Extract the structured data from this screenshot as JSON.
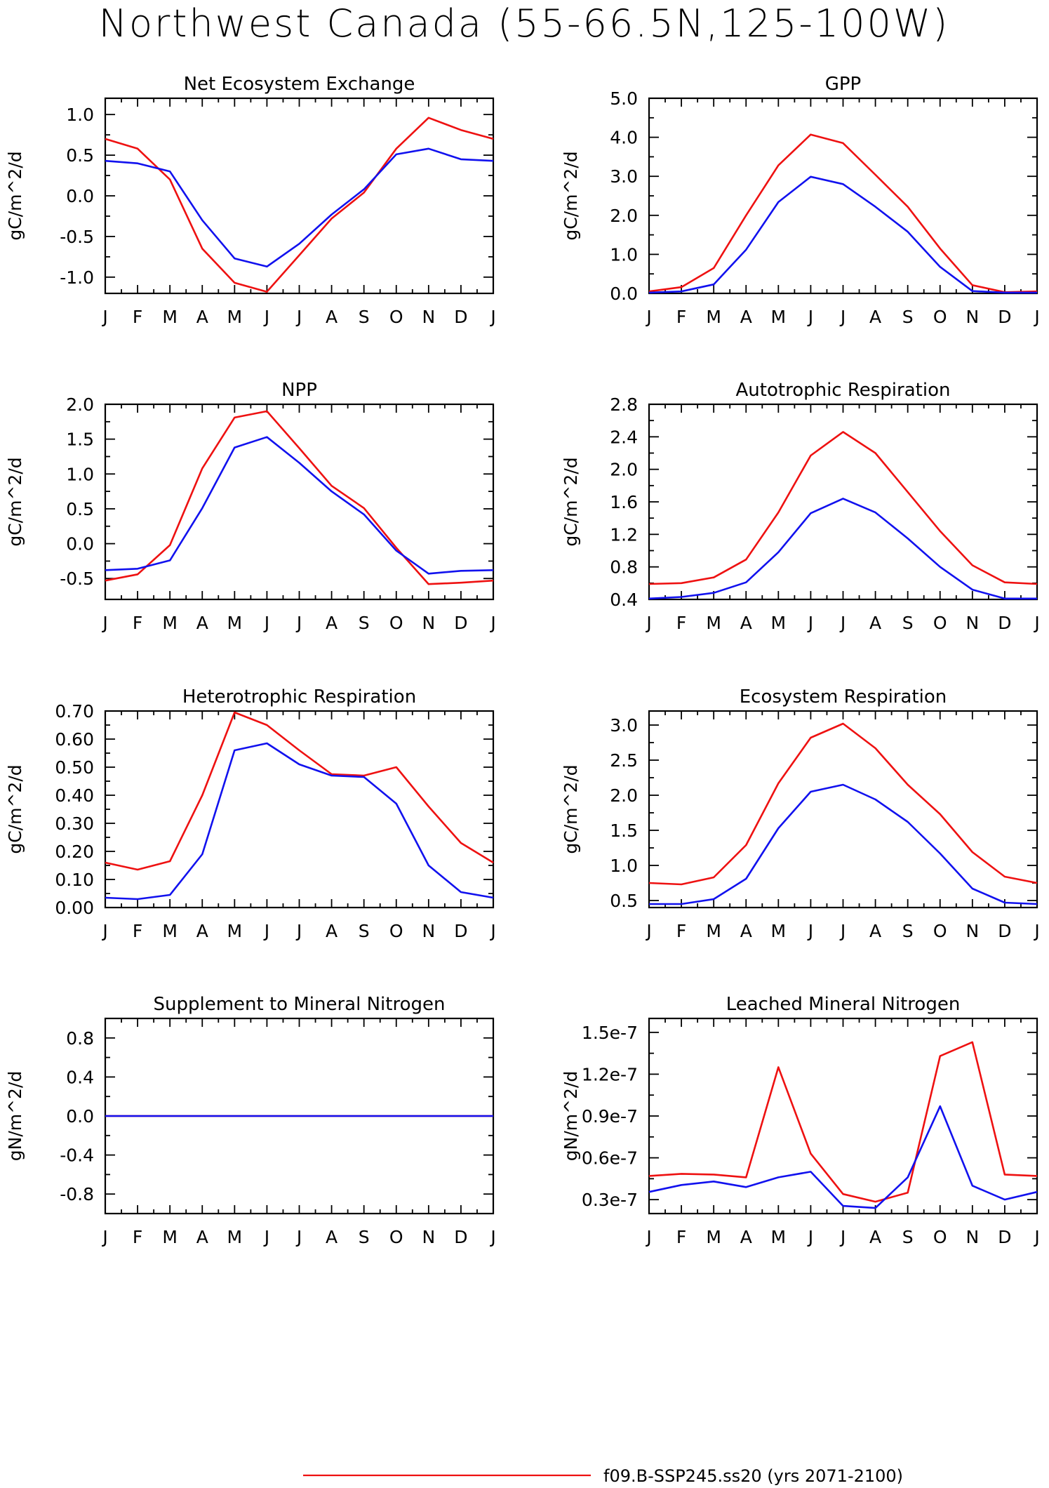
{
  "title": "Northwest Canada (55-66.5N,125-100W)",
  "month_labels": [
    "J",
    "F",
    "M",
    "A",
    "M",
    "J",
    "J",
    "A",
    "S",
    "O",
    "N",
    "D",
    "J"
  ],
  "colors": {
    "series_1": "#ee1111",
    "series_2": "#1111ee"
  },
  "legend": [
    {
      "label": "f09.B-SSP245.ss20 (yrs 2071-2100)",
      "color": "#ee1111"
    }
  ],
  "chart_data": [
    {
      "type": "line",
      "title": "Net Ecosystem Exchange",
      "ylabel": "gC/m^2/d",
      "ylim": [
        -1.2,
        1.2
      ],
      "yticks": [
        -1.0,
        -0.5,
        0.0,
        0.5,
        1.0
      ],
      "ytick_labels": [
        "-1.0",
        "-0.5",
        "0.0",
        "0.5",
        "1.0"
      ],
      "x": [
        "J",
        "F",
        "M",
        "A",
        "M",
        "J",
        "J",
        "A",
        "S",
        "O",
        "N",
        "D",
        "J"
      ],
      "series": [
        {
          "values": [
            0.7,
            0.58,
            0.2,
            -0.65,
            -1.07,
            -1.18,
            -0.73,
            -0.28,
            0.04,
            0.58,
            0.96,
            0.81,
            0.7
          ],
          "color": "#ee1111"
        },
        {
          "values": [
            0.43,
            0.4,
            0.3,
            -0.3,
            -0.77,
            -0.87,
            -0.59,
            -0.23,
            0.08,
            0.51,
            0.58,
            0.45,
            0.43
          ],
          "color": "#1111ee"
        }
      ]
    },
    {
      "type": "line",
      "title": "GPP",
      "ylabel": "gC/m^2/d",
      "ylim": [
        0.0,
        5.0
      ],
      "yticks": [
        0.0,
        1.0,
        2.0,
        3.0,
        4.0,
        5.0
      ],
      "ytick_labels": [
        "0.0",
        "1.0",
        "2.0",
        "3.0",
        "4.0",
        "5.0"
      ],
      "x": [
        "J",
        "F",
        "M",
        "A",
        "M",
        "J",
        "J",
        "A",
        "S",
        "O",
        "N",
        "D",
        "J"
      ],
      "series": [
        {
          "values": [
            0.05,
            0.16,
            0.65,
            2.0,
            3.28,
            4.07,
            3.85,
            3.04,
            2.22,
            1.15,
            0.21,
            0.03,
            0.05
          ],
          "color": "#ee1111"
        },
        {
          "values": [
            0.02,
            0.05,
            0.23,
            1.12,
            2.34,
            2.99,
            2.8,
            2.22,
            1.58,
            0.68,
            0.06,
            0.02,
            0.02
          ],
          "color": "#1111ee"
        }
      ]
    },
    {
      "type": "line",
      "title": "NPP",
      "ylabel": "gC/m^2/d",
      "ylim": [
        -0.8,
        2.0
      ],
      "yticks": [
        -0.5,
        0.0,
        0.5,
        1.0,
        1.5,
        2.0
      ],
      "ytick_labels": [
        "-0.5",
        "0.0",
        "0.5",
        "1.0",
        "1.5",
        "2.0"
      ],
      "x": [
        "J",
        "F",
        "M",
        "A",
        "M",
        "J",
        "J",
        "A",
        "S",
        "O",
        "N",
        "D",
        "J"
      ],
      "series": [
        {
          "values": [
            -0.53,
            -0.44,
            -0.02,
            1.08,
            1.81,
            1.9,
            1.37,
            0.83,
            0.51,
            -0.06,
            -0.58,
            -0.56,
            -0.53
          ],
          "color": "#ee1111"
        },
        {
          "values": [
            -0.38,
            -0.36,
            -0.24,
            0.51,
            1.38,
            1.53,
            1.16,
            0.75,
            0.42,
            -0.1,
            -0.43,
            -0.39,
            -0.38
          ],
          "color": "#1111ee"
        }
      ]
    },
    {
      "type": "line",
      "title": "Autotrophic Respiration",
      "ylabel": "gC/m^2/d",
      "ylim": [
        0.4,
        2.8
      ],
      "yticks": [
        0.4,
        0.8,
        1.2,
        1.6,
        2.0,
        2.4,
        2.8
      ],
      "ytick_labels": [
        "0.4",
        "0.8",
        "1.2",
        "1.6",
        "2.0",
        "2.4",
        "2.8"
      ],
      "x": [
        "J",
        "F",
        "M",
        "A",
        "M",
        "J",
        "J",
        "A",
        "S",
        "O",
        "N",
        "D",
        "J"
      ],
      "series": [
        {
          "values": [
            0.59,
            0.6,
            0.67,
            0.89,
            1.47,
            2.17,
            2.46,
            2.2,
            1.72,
            1.24,
            0.82,
            0.61,
            0.59
          ],
          "color": "#ee1111"
        },
        {
          "values": [
            0.41,
            0.43,
            0.48,
            0.61,
            0.98,
            1.46,
            1.64,
            1.47,
            1.15,
            0.8,
            0.52,
            0.41,
            0.41
          ],
          "color": "#1111ee"
        }
      ]
    },
    {
      "type": "line",
      "title": "Heterotrophic Respiration",
      "ylabel": "gC/m^2/d",
      "ylim": [
        0.0,
        0.7
      ],
      "yticks": [
        0.0,
        0.1,
        0.2,
        0.3,
        0.4,
        0.5,
        0.6,
        0.7
      ],
      "ytick_labels": [
        "0.00",
        "0.10",
        "0.20",
        "0.30",
        "0.40",
        "0.50",
        "0.60",
        "0.70"
      ],
      "x": [
        "J",
        "F",
        "M",
        "A",
        "M",
        "J",
        "J",
        "A",
        "S",
        "O",
        "N",
        "D",
        "J"
      ],
      "series": [
        {
          "values": [
            0.16,
            0.135,
            0.165,
            0.4,
            0.695,
            0.65,
            0.56,
            0.475,
            0.47,
            0.5,
            0.36,
            0.23,
            0.16
          ],
          "color": "#ee1111"
        },
        {
          "values": [
            0.035,
            0.03,
            0.045,
            0.19,
            0.56,
            0.585,
            0.51,
            0.47,
            0.465,
            0.37,
            0.15,
            0.055,
            0.035
          ],
          "color": "#1111ee"
        }
      ]
    },
    {
      "type": "line",
      "title": "Ecosystem Respiration",
      "ylabel": "gC/m^2/d",
      "ylim": [
        0.4,
        3.2
      ],
      "yticks": [
        0.5,
        1.0,
        1.5,
        2.0,
        2.5,
        3.0
      ],
      "ytick_labels": [
        "0.5",
        "1.0",
        "1.5",
        "2.0",
        "2.5",
        "3.0"
      ],
      "x": [
        "J",
        "F",
        "M",
        "A",
        "M",
        "J",
        "J",
        "A",
        "S",
        "O",
        "N",
        "D",
        "J"
      ],
      "series": [
        {
          "values": [
            0.75,
            0.73,
            0.83,
            1.29,
            2.17,
            2.82,
            3.02,
            2.67,
            2.15,
            1.73,
            1.19,
            0.84,
            0.75
          ],
          "color": "#ee1111"
        },
        {
          "values": [
            0.45,
            0.45,
            0.52,
            0.81,
            1.53,
            2.05,
            2.15,
            1.94,
            1.62,
            1.17,
            0.67,
            0.47,
            0.45
          ],
          "color": "#1111ee"
        }
      ]
    },
    {
      "type": "line",
      "title": "Supplement to Mineral Nitrogen",
      "ylabel": "gN/m^2/d",
      "ylim": [
        -1.0,
        1.0
      ],
      "yticks": [
        -0.8,
        -0.4,
        0.0,
        0.4,
        0.8
      ],
      "ytick_labels": [
        "-0.8",
        "-0.4",
        "0.0",
        "0.4",
        "0.8"
      ],
      "x": [
        "J",
        "F",
        "M",
        "A",
        "M",
        "J",
        "J",
        "A",
        "S",
        "O",
        "N",
        "D",
        "J"
      ],
      "series": [
        {
          "values": [
            0,
            0,
            0,
            0,
            0,
            0,
            0,
            0,
            0,
            0,
            0,
            0,
            0
          ],
          "color": "#ee1111"
        },
        {
          "values": [
            0,
            0,
            0,
            0,
            0,
            0,
            0,
            0,
            0,
            0,
            0,
            0,
            0
          ],
          "color": "#1111ee"
        }
      ]
    },
    {
      "type": "line",
      "title": "Leached Mineral Nitrogen",
      "ylabel": "gN/m^2/d",
      "ylim": [
        2e-08,
        1.6e-07
      ],
      "yticks": [
        3e-08,
        6e-08,
        9e-08,
        1.2e-07,
        1.5e-07
      ],
      "ytick_labels": [
        "0.3e-7",
        "0.6e-7",
        "0.9e-7",
        "1.2e-7",
        "1.5e-7"
      ],
      "x": [
        "J",
        "F",
        "M",
        "A",
        "M",
        "J",
        "J",
        "A",
        "S",
        "O",
        "N",
        "D",
        "J"
      ],
      "series": [
        {
          "values": [
            4.7e-08,
            4.85e-08,
            4.8e-08,
            4.6e-08,
            1.25e-07,
            6.3e-08,
            3.4e-08,
            2.85e-08,
            3.5e-08,
            1.33e-07,
            1.43e-07,
            4.8e-08,
            4.7e-08
          ],
          "color": "#ee1111"
        },
        {
          "values": [
            3.55e-08,
            4.05e-08,
            4.3e-08,
            3.9e-08,
            4.6e-08,
            5e-08,
            2.55e-08,
            2.4e-08,
            4.6e-08,
            9.7e-08,
            4e-08,
            3e-08,
            3.55e-08
          ],
          "color": "#1111ee"
        }
      ]
    }
  ]
}
